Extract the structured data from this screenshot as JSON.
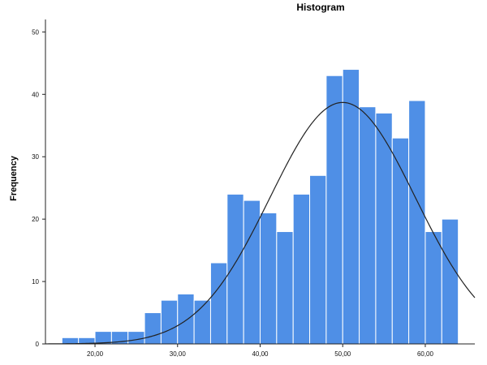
{
  "chart_data": {
    "type": "bar",
    "title": "Histogram",
    "xlabel": "",
    "ylabel": "Frequency",
    "xlim": [
      14,
      66
    ],
    "ylim": [
      0,
      52
    ],
    "x_ticks": [
      20,
      30,
      40,
      50,
      60
    ],
    "x_tick_labels": [
      "20,00",
      "30,00",
      "40,00",
      "50,00",
      "60,00"
    ],
    "y_ticks": [
      0,
      10,
      20,
      30,
      40,
      50
    ],
    "y_tick_labels": [
      "0",
      "10",
      "20",
      "30",
      "40",
      "50"
    ],
    "bins": [
      {
        "x0": 16.0,
        "x1": 18.0,
        "value": 1
      },
      {
        "x0": 18.0,
        "x1": 20.0,
        "value": 1
      },
      {
        "x0": 20.0,
        "x1": 22.0,
        "value": 2
      },
      {
        "x0": 22.0,
        "x1": 24.0,
        "value": 2
      },
      {
        "x0": 24.0,
        "x1": 26.0,
        "value": 2
      },
      {
        "x0": 26.0,
        "x1": 28.0,
        "value": 5
      },
      {
        "x0": 28.0,
        "x1": 30.0,
        "value": 7
      },
      {
        "x0": 30.0,
        "x1": 32.0,
        "value": 8
      },
      {
        "x0": 32.0,
        "x1": 34.0,
        "value": 7
      },
      {
        "x0": 34.0,
        "x1": 36.0,
        "value": 13
      },
      {
        "x0": 36.0,
        "x1": 38.0,
        "value": 24
      },
      {
        "x0": 38.0,
        "x1": 40.0,
        "value": 23
      },
      {
        "x0": 40.0,
        "x1": 42.0,
        "value": 21
      },
      {
        "x0": 42.0,
        "x1": 44.0,
        "value": 18
      },
      {
        "x0": 44.0,
        "x1": 46.0,
        "value": 24
      },
      {
        "x0": 46.0,
        "x1": 48.0,
        "value": 27
      },
      {
        "x0": 48.0,
        "x1": 50.0,
        "value": 43
      },
      {
        "x0": 50.0,
        "x1": 52.0,
        "value": 44
      },
      {
        "x0": 52.0,
        "x1": 54.0,
        "value": 38
      },
      {
        "x0": 54.0,
        "x1": 56.0,
        "value": 37
      },
      {
        "x0": 56.0,
        "x1": 58.0,
        "value": 33
      },
      {
        "x0": 58.0,
        "x1": 60.0,
        "value": 39
      },
      {
        "x0": 60.0,
        "x1": 62.0,
        "value": 18
      },
      {
        "x0": 62.0,
        "x1": 64.0,
        "value": 20
      }
    ],
    "normal_curve": {
      "mean": 50.0,
      "std": 8.8,
      "peak": 38.7
    },
    "grid": false,
    "legend": "none",
    "colors": {
      "bar": "#4f8fe6",
      "bar_edge": "#ffffff",
      "curve": "#222222",
      "axis": "#222222"
    }
  }
}
